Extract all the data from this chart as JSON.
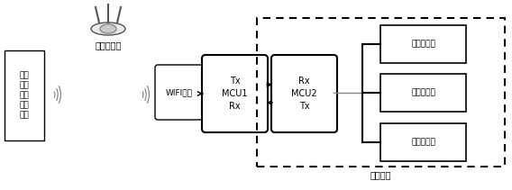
{
  "bg_color": "#ffffff",
  "mobile_label": "移动\n控制\n终端\n控制\n界面",
  "router_label": "智能路由器",
  "wifi_label": "WIFI模组",
  "mcu1_label": "Tx\nMCU1\nRx",
  "mcu2_label": "Rx\nMCU2\nTx",
  "sensor1_label": "温度传感器",
  "sensor2_label": "电流传感器",
  "sensor3_label": "上盖传感器",
  "home_label": "家电产品",
  "font_size_main": 7,
  "font_size_small": 6.5,
  "font_size_router": 7
}
